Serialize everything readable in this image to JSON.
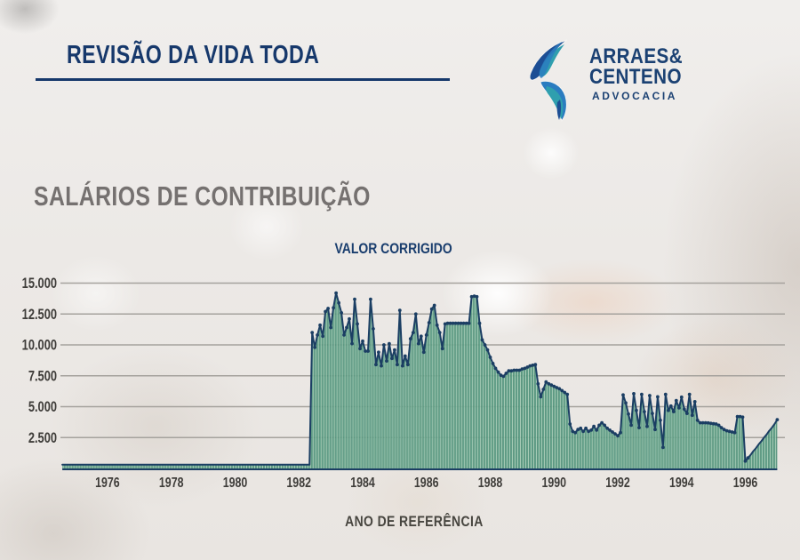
{
  "header": {
    "title": "REVISÃO DA VIDA TODA"
  },
  "logo": {
    "line1": "ARRAES&",
    "line2": "CENTENO",
    "line3": "ADVOCACIA"
  },
  "section": {
    "title": "SALÁRIOS DE CONTRIBUIÇÃO"
  },
  "colors": {
    "navy": "#16386b",
    "logo_blue": "#2a7cc0",
    "logo_dark_blue": "#1c4e94",
    "logo_teal": "#2f9fae",
    "axis_text": "#3e3c39",
    "gridline": "#a5a29d"
  },
  "chart_data": {
    "type": "area",
    "title": "VALOR CORRIGIDO",
    "xlabel": "ANO DE REFERÊNCIA",
    "series_name": "Salários de contribuição (valor corrigido)",
    "grid": true,
    "legend": "none",
    "ylim": [
      0,
      15500
    ],
    "xlim_years": [
      1974.58,
      1997.1
    ],
    "x_start_year": 1974.583,
    "x_step_months": 1,
    "y_tick_values": [
      2500,
      5000,
      7500,
      10000,
      12500,
      15000
    ],
    "y_ticks": [
      "2.500",
      "5.000",
      "7.500",
      "10.000",
      "12.500",
      "15.000"
    ],
    "x_tick_years": [
      1976,
      1978,
      1980,
      1982,
      1984,
      1986,
      1988,
      1990,
      1992,
      1994,
      1996
    ],
    "x_tick_labels": [
      "1976",
      "1978",
      "1980",
      "1982",
      "1984",
      "1986",
      "1988",
      "1990",
      "1992",
      "1994",
      "1996"
    ],
    "colors": {
      "line": "#1b3e63",
      "bar_dark": "#3f8069",
      "bar_mid": "#5fa088",
      "bar_light": "#a6cdb5"
    },
    "values": [
      300,
      300,
      300,
      300,
      300,
      300,
      300,
      300,
      300,
      300,
      300,
      300,
      300,
      300,
      300,
      300,
      300,
      300,
      300,
      300,
      300,
      300,
      300,
      300,
      300,
      300,
      300,
      300,
      300,
      300,
      300,
      300,
      300,
      300,
      300,
      300,
      300,
      300,
      300,
      300,
      300,
      300,
      300,
      300,
      300,
      300,
      300,
      300,
      300,
      300,
      300,
      300,
      300,
      300,
      300,
      300,
      300,
      300,
      300,
      300,
      300,
      300,
      300,
      300,
      300,
      300,
      300,
      300,
      300,
      300,
      300,
      300,
      300,
      300,
      300,
      300,
      300,
      300,
      300,
      300,
      300,
      300,
      300,
      300,
      300,
      300,
      300,
      300,
      300,
      300,
      300,
      300,
      300,
      300,
      11000,
      9800,
      10800,
      11600,
      10700,
      12700,
      12950,
      11400,
      13000,
      14200,
      13400,
      12600,
      10800,
      11400,
      12100,
      10100,
      13700,
      11700,
      9700,
      10300,
      9500,
      9500,
      13700,
      11300,
      8400,
      9400,
      8300,
      10000,
      8700,
      10100,
      8900,
      9600,
      8400,
      12800,
      8300,
      9100,
      8400,
      10500,
      11000,
      12500,
      10100,
      10700,
      9400,
      10800,
      11800,
      12900,
      13200,
      11600,
      11000,
      9700,
      11700,
      11750,
      11750,
      11750,
      11750,
      11750,
      11750,
      11750,
      11750,
      11750,
      13900,
      13950,
      13900,
      11750,
      10400,
      10000,
      9600,
      9000,
      8500,
      8100,
      7800,
      7550,
      7450,
      7700,
      7900,
      7900,
      7950,
      7950,
      7950,
      8050,
      8100,
      8200,
      8300,
      8350,
      8400,
      6850,
      5800,
      6400,
      7000,
      6850,
      6750,
      6650,
      6550,
      6450,
      6300,
      6150,
      6000,
      3600,
      3000,
      2900,
      3150,
      3250,
      3000,
      3250,
      3000,
      3100,
      3400,
      3100,
      3500,
      3700,
      3500,
      3250,
      3100,
      2950,
      2800,
      2650,
      2900,
      5950,
      5300,
      4400,
      3500,
      6050,
      4700,
      3300,
      6000,
      4600,
      3400,
      5900,
      4450,
      3150,
      5800,
      3900,
      1700,
      6000,
      4700,
      5050,
      4600,
      5500,
      4900,
      5770,
      4800,
      4450,
      6000,
      4300,
      5400,
      3900,
      3700,
      3700,
      3700,
      3680,
      3650,
      3620,
      3600,
      3500,
      3300,
      3150,
      3050,
      3000,
      2950,
      2900,
      4200,
      4200,
      4150,
      600,
      850,
      1100,
      1400,
      1650,
      1950,
      2200,
      2500,
      2750,
      3050,
      3300,
      3600,
      3950
    ]
  }
}
